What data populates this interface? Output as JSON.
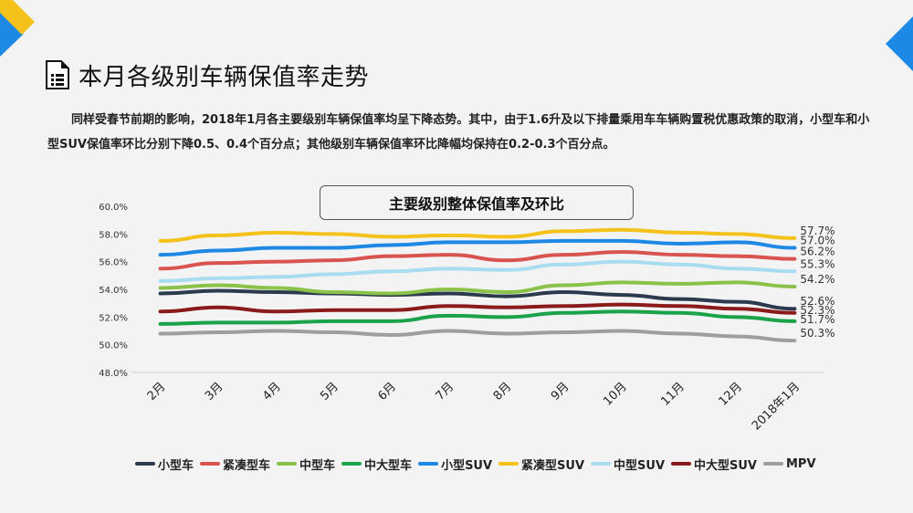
{
  "page": {
    "title": "本月各级别车辆保值率走势",
    "intro": "同样受春节前期的影响，2018年1月各主要级别车辆保值率均呈下降态势。其中，由于1.6升及以下排量乘用车车辆购置税优惠政策的取消，小型车和小型SUV保值率环比分别下降0.5、0.4个百分点；其他级别车辆保值率环比降幅均保持在0.2-0.3个百分点。"
  },
  "colors": {
    "accent_blue": "#1e88e5",
    "accent_yellow": "#f5c21b"
  },
  "icons": {
    "title_icon": "document-icon"
  },
  "chart_data": {
    "type": "line",
    "title": "主要级别整体保值率及环比",
    "categories": [
      "2月",
      "3月",
      "4月",
      "5月",
      "6月",
      "7月",
      "8月",
      "9月",
      "10月",
      "11月",
      "12月",
      "2018年1月"
    ],
    "ylim": [
      48.0,
      60.0
    ],
    "yticks": [
      "48.0%",
      "50.0%",
      "52.0%",
      "54.0%",
      "56.0%",
      "58.0%",
      "60.0%"
    ],
    "grid": false,
    "legend_position": "bottom",
    "series": [
      {
        "name": "小型车",
        "color": "#2c3a4d",
        "values": [
          53.7,
          53.9,
          53.8,
          53.7,
          53.6,
          53.7,
          53.5,
          53.8,
          53.6,
          53.3,
          53.1,
          52.6
        ],
        "end_label": "52.6%"
      },
      {
        "name": "紧凑型车",
        "color": "#d9534f",
        "values": [
          55.5,
          55.9,
          56.0,
          56.1,
          56.4,
          56.5,
          56.1,
          56.5,
          56.7,
          56.5,
          56.4,
          56.2
        ],
        "end_label": "56.2%"
      },
      {
        "name": "中型车",
        "color": "#8bc34a",
        "values": [
          54.1,
          54.3,
          54.1,
          53.8,
          53.7,
          54.0,
          53.8,
          54.3,
          54.5,
          54.4,
          54.5,
          54.2
        ],
        "end_label": "54.2%"
      },
      {
        "name": "中大型车",
        "color": "#1aa34a",
        "values": [
          51.5,
          51.6,
          51.6,
          51.7,
          51.7,
          52.1,
          52.0,
          52.3,
          52.4,
          52.3,
          52.0,
          51.7
        ],
        "end_label": "51.7%"
      },
      {
        "name": "小型SUV",
        "color": "#1e88e5",
        "values": [
          56.5,
          56.8,
          57.0,
          57.0,
          57.2,
          57.4,
          57.4,
          57.5,
          57.5,
          57.3,
          57.4,
          57.0
        ],
        "end_label": "57.0%"
      },
      {
        "name": "紧凑型SUV",
        "color": "#f5c21b",
        "values": [
          57.5,
          57.9,
          58.1,
          58.0,
          57.8,
          57.9,
          57.8,
          58.2,
          58.3,
          58.1,
          58.0,
          57.7
        ],
        "end_label": "57.7%"
      },
      {
        "name": "中型SUV",
        "color": "#a8dcf0",
        "values": [
          54.6,
          54.8,
          54.9,
          55.1,
          55.3,
          55.5,
          55.4,
          55.8,
          56.0,
          55.8,
          55.5,
          55.3
        ],
        "end_label": "55.3%"
      },
      {
        "name": "中大型SUV",
        "color": "#8b1a1a",
        "values": [
          52.4,
          52.7,
          52.4,
          52.5,
          52.5,
          52.8,
          52.7,
          52.8,
          52.9,
          52.8,
          52.6,
          52.3
        ],
        "end_label": "52.3%"
      },
      {
        "name": "MPV",
        "color": "#9e9e9e",
        "values": [
          50.8,
          50.9,
          51.0,
          50.9,
          50.7,
          51.0,
          50.8,
          50.9,
          51.0,
          50.8,
          50.6,
          50.3
        ],
        "end_label": "50.3%"
      }
    ]
  }
}
